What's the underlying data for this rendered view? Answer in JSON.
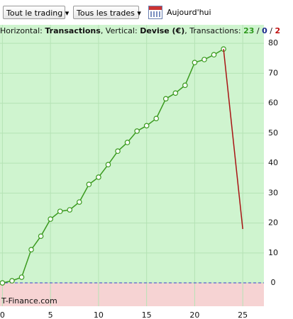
{
  "toolbar": {
    "buttons": [
      "Tout le trading",
      "Tous les trades"
    ],
    "date_label": "Aujourd'hui"
  },
  "header": {
    "h_label": "Horizontal: ",
    "h_value": "Transactions",
    "v_label": ", Vertical: ",
    "v_value": "Devise (€)",
    "t_label": ", Transactions: ",
    "won": "23",
    "sep1": " / ",
    "even": "0",
    "sep2": " / ",
    "lost": "2"
  },
  "watermark": "T-Finance.com",
  "chart_data": {
    "type": "line",
    "series": [
      {
        "color": "#3a9a1e",
        "markers": true,
        "x": [
          0,
          1,
          2,
          3,
          4,
          5,
          6,
          7,
          8,
          9,
          10,
          11,
          12,
          13,
          14,
          15,
          16,
          17,
          18,
          19,
          20,
          21,
          22,
          23
        ],
        "values": [
          0,
          0.7,
          1.9,
          11.1,
          15.6,
          21.3,
          23.9,
          24.4,
          27.0,
          32.9,
          35.3,
          39.5,
          44.0,
          46.9,
          50.7,
          52.5,
          54.9,
          61.5,
          63.4,
          66.0,
          73.6,
          74.6,
          76.2,
          78.1
        ]
      },
      {
        "color": "#a81414",
        "markers": false,
        "x": [
          23,
          25
        ],
        "values": [
          78.1,
          18.0
        ]
      }
    ],
    "xlim": [
      -0.25,
      27.2
    ],
    "ylim": [
      -7.8,
      86.2
    ],
    "xticks": [
      0,
      5,
      10,
      15,
      20,
      25
    ],
    "yticks": [
      0,
      10,
      20,
      30,
      40,
      50,
      60,
      70,
      80
    ],
    "grid": true,
    "zero_line": true,
    "positive_color": "#cff4cf",
    "negative_color": "#f6d3d3"
  }
}
